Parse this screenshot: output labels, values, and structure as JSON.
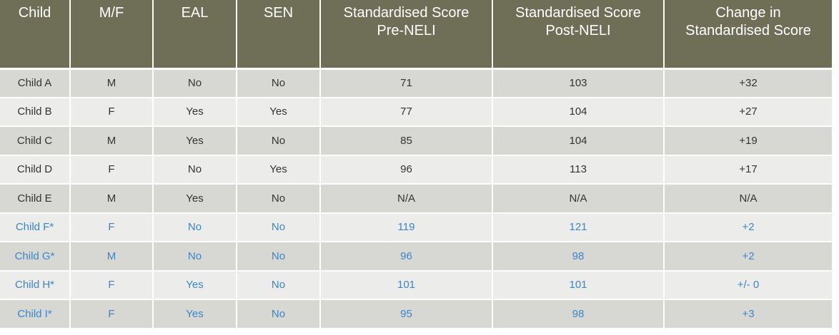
{
  "table": {
    "headers": [
      [
        "Child"
      ],
      [
        "M/F"
      ],
      [
        "EAL"
      ],
      [
        "SEN"
      ],
      [
        "Standardised Score",
        "Pre-NELI"
      ],
      [
        "Standardised Score",
        "Post-NELI"
      ],
      [
        "Change in",
        "Standardised Score"
      ]
    ],
    "rows": [
      {
        "child": "Child A",
        "sex": "M",
        "eal": "No",
        "sen": "No",
        "pre": "71",
        "post": "103",
        "change": "+32"
      },
      {
        "child": "Child B",
        "sex": "F",
        "eal": "Yes",
        "sen": "Yes",
        "pre": "77",
        "post": "104",
        "change": "+27"
      },
      {
        "child": "Child C",
        "sex": "M",
        "eal": "Yes",
        "sen": "No",
        "pre": "85",
        "post": "104",
        "change": "+19"
      },
      {
        "child": "Child D",
        "sex": "F",
        "eal": "No",
        "sen": "Yes",
        "pre": "96",
        "post": "113",
        "change": "+17"
      },
      {
        "child": "Child E",
        "sex": "M",
        "eal": "Yes",
        "sen": "No",
        "pre": "N/A",
        "post": "N/A",
        "change": "N/A"
      },
      {
        "child": "Child F*",
        "sex": "F",
        "eal": "No",
        "sen": "No",
        "pre": "119",
        "post": "121",
        "change": "+2"
      },
      {
        "child": "Child G*",
        "sex": "M",
        "eal": "No",
        "sen": "No",
        "pre": "96",
        "post": "98",
        "change": "+2"
      },
      {
        "child": "Child H*",
        "sex": "F",
        "eal": "Yes",
        "sen": "No",
        "pre": "101",
        "post": "101",
        "change": "+/- 0"
      },
      {
        "child": "Child I*",
        "sex": "F",
        "eal": "Yes",
        "sen": "No",
        "pre": "95",
        "post": "98",
        "change": "+3"
      }
    ]
  },
  "colors": {
    "header_bg": "#6f6f57",
    "row_dark": "#d7d7d3",
    "row_light": "#ececea",
    "starred_text": "#3a86c8",
    "body_text": "#333333"
  }
}
